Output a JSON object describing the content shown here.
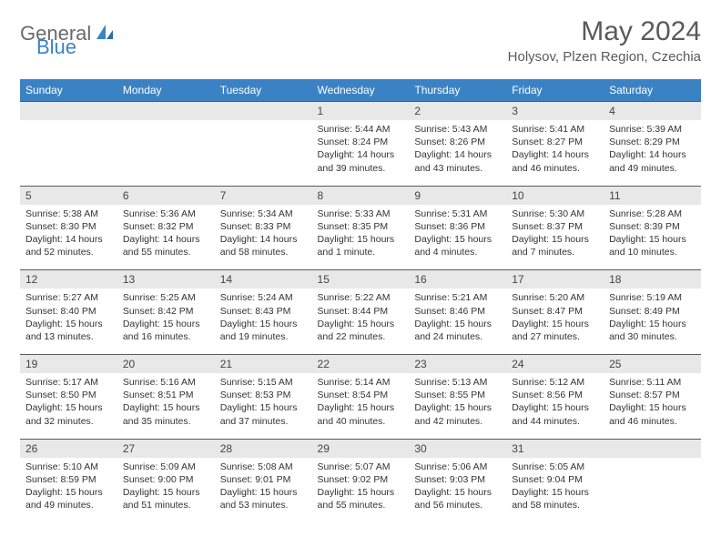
{
  "brand": {
    "part1": "General",
    "part2": "Blue"
  },
  "title": "May 2024",
  "location": "Holysov, Plzen Region, Czechia",
  "colors": {
    "header_bg": "#3b82c4",
    "header_text": "#ffffff",
    "daynum_bg": "#e8e8e8",
    "border": "#5a5a5a",
    "body_text": "#333333",
    "title_text": "#5a5a5a",
    "logo_gray": "#6a6a6a",
    "logo_blue": "#3b82c4",
    "page_bg": "#ffffff"
  },
  "fonts": {
    "title_size_pt": 30,
    "location_size_pt": 15,
    "weekday_size_pt": 12,
    "daynum_size_pt": 12,
    "cell_size_pt": 10.5
  },
  "weekdays": [
    "Sunday",
    "Monday",
    "Tuesday",
    "Wednesday",
    "Thursday",
    "Friday",
    "Saturday"
  ],
  "weeks": [
    [
      null,
      null,
      null,
      {
        "n": "1",
        "sunrise": "5:44 AM",
        "sunset": "8:24 PM",
        "daylight": "14 hours and 39 minutes."
      },
      {
        "n": "2",
        "sunrise": "5:43 AM",
        "sunset": "8:26 PM",
        "daylight": "14 hours and 43 minutes."
      },
      {
        "n": "3",
        "sunrise": "5:41 AM",
        "sunset": "8:27 PM",
        "daylight": "14 hours and 46 minutes."
      },
      {
        "n": "4",
        "sunrise": "5:39 AM",
        "sunset": "8:29 PM",
        "daylight": "14 hours and 49 minutes."
      }
    ],
    [
      {
        "n": "5",
        "sunrise": "5:38 AM",
        "sunset": "8:30 PM",
        "daylight": "14 hours and 52 minutes."
      },
      {
        "n": "6",
        "sunrise": "5:36 AM",
        "sunset": "8:32 PM",
        "daylight": "14 hours and 55 minutes."
      },
      {
        "n": "7",
        "sunrise": "5:34 AM",
        "sunset": "8:33 PM",
        "daylight": "14 hours and 58 minutes."
      },
      {
        "n": "8",
        "sunrise": "5:33 AM",
        "sunset": "8:35 PM",
        "daylight": "15 hours and 1 minute."
      },
      {
        "n": "9",
        "sunrise": "5:31 AM",
        "sunset": "8:36 PM",
        "daylight": "15 hours and 4 minutes."
      },
      {
        "n": "10",
        "sunrise": "5:30 AM",
        "sunset": "8:37 PM",
        "daylight": "15 hours and 7 minutes."
      },
      {
        "n": "11",
        "sunrise": "5:28 AM",
        "sunset": "8:39 PM",
        "daylight": "15 hours and 10 minutes."
      }
    ],
    [
      {
        "n": "12",
        "sunrise": "5:27 AM",
        "sunset": "8:40 PM",
        "daylight": "15 hours and 13 minutes."
      },
      {
        "n": "13",
        "sunrise": "5:25 AM",
        "sunset": "8:42 PM",
        "daylight": "15 hours and 16 minutes."
      },
      {
        "n": "14",
        "sunrise": "5:24 AM",
        "sunset": "8:43 PM",
        "daylight": "15 hours and 19 minutes."
      },
      {
        "n": "15",
        "sunrise": "5:22 AM",
        "sunset": "8:44 PM",
        "daylight": "15 hours and 22 minutes."
      },
      {
        "n": "16",
        "sunrise": "5:21 AM",
        "sunset": "8:46 PM",
        "daylight": "15 hours and 24 minutes."
      },
      {
        "n": "17",
        "sunrise": "5:20 AM",
        "sunset": "8:47 PM",
        "daylight": "15 hours and 27 minutes."
      },
      {
        "n": "18",
        "sunrise": "5:19 AM",
        "sunset": "8:49 PM",
        "daylight": "15 hours and 30 minutes."
      }
    ],
    [
      {
        "n": "19",
        "sunrise": "5:17 AM",
        "sunset": "8:50 PM",
        "daylight": "15 hours and 32 minutes."
      },
      {
        "n": "20",
        "sunrise": "5:16 AM",
        "sunset": "8:51 PM",
        "daylight": "15 hours and 35 minutes."
      },
      {
        "n": "21",
        "sunrise": "5:15 AM",
        "sunset": "8:53 PM",
        "daylight": "15 hours and 37 minutes."
      },
      {
        "n": "22",
        "sunrise": "5:14 AM",
        "sunset": "8:54 PM",
        "daylight": "15 hours and 40 minutes."
      },
      {
        "n": "23",
        "sunrise": "5:13 AM",
        "sunset": "8:55 PM",
        "daylight": "15 hours and 42 minutes."
      },
      {
        "n": "24",
        "sunrise": "5:12 AM",
        "sunset": "8:56 PM",
        "daylight": "15 hours and 44 minutes."
      },
      {
        "n": "25",
        "sunrise": "5:11 AM",
        "sunset": "8:57 PM",
        "daylight": "15 hours and 46 minutes."
      }
    ],
    [
      {
        "n": "26",
        "sunrise": "5:10 AM",
        "sunset": "8:59 PM",
        "daylight": "15 hours and 49 minutes."
      },
      {
        "n": "27",
        "sunrise": "5:09 AM",
        "sunset": "9:00 PM",
        "daylight": "15 hours and 51 minutes."
      },
      {
        "n": "28",
        "sunrise": "5:08 AM",
        "sunset": "9:01 PM",
        "daylight": "15 hours and 53 minutes."
      },
      {
        "n": "29",
        "sunrise": "5:07 AM",
        "sunset": "9:02 PM",
        "daylight": "15 hours and 55 minutes."
      },
      {
        "n": "30",
        "sunrise": "5:06 AM",
        "sunset": "9:03 PM",
        "daylight": "15 hours and 56 minutes."
      },
      {
        "n": "31",
        "sunrise": "5:05 AM",
        "sunset": "9:04 PM",
        "daylight": "15 hours and 58 minutes."
      },
      null
    ]
  ],
  "labels": {
    "sunrise": "Sunrise:",
    "sunset": "Sunset:",
    "daylight": "Daylight:"
  }
}
